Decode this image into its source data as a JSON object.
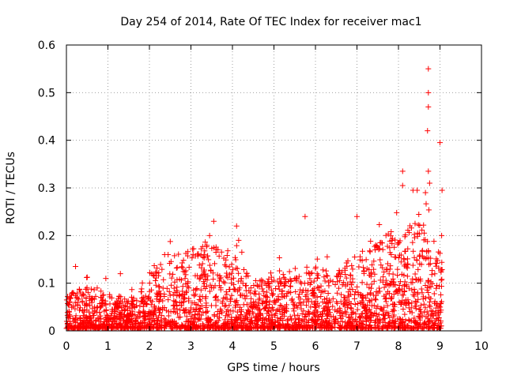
{
  "chart_data": {
    "type": "scatter",
    "title": "Day 254 of 2014, Rate Of TEC Index for receiver mac1",
    "xlabel": "GPS time / hours",
    "ylabel": "ROTI / TECUs",
    "xlim": [
      0,
      10
    ],
    "ylim": [
      0,
      0.6
    ],
    "xticks": [
      "0",
      "1",
      "2",
      "3",
      "4",
      "5",
      "6",
      "7",
      "8",
      "9",
      "10"
    ],
    "yticks": [
      "0",
      "0.1",
      "0.2",
      "0.3",
      "0.4",
      "0.5",
      "0.6"
    ],
    "grid": true,
    "marker": "+",
    "color": "#ff0000",
    "highlighted_points": [
      {
        "x": 8.72,
        "y": 0.55
      },
      {
        "x": 8.72,
        "y": 0.5
      },
      {
        "x": 8.72,
        "y": 0.47
      },
      {
        "x": 8.7,
        "y": 0.42
      },
      {
        "x": 9.0,
        "y": 0.395
      },
      {
        "x": 8.72,
        "y": 0.335
      },
      {
        "x": 8.1,
        "y": 0.335
      },
      {
        "x": 8.75,
        "y": 0.31
      },
      {
        "x": 8.1,
        "y": 0.305
      },
      {
        "x": 8.35,
        "y": 0.295
      },
      {
        "x": 8.45,
        "y": 0.295
      },
      {
        "x": 9.05,
        "y": 0.295
      },
      {
        "x": 8.65,
        "y": 0.29
      },
      {
        "x": 5.75,
        "y": 0.24
      },
      {
        "x": 7.0,
        "y": 0.24
      },
      {
        "x": 3.55,
        "y": 0.23
      },
      {
        "x": 4.1,
        "y": 0.22
      },
      {
        "x": 4.15,
        "y": 0.19
      },
      {
        "x": 2.45,
        "y": 0.16
      },
      {
        "x": 3.45,
        "y": 0.2
      },
      {
        "x": 0.22,
        "y": 0.135
      },
      {
        "x": 1.3,
        "y": 0.12
      },
      {
        "x": 0.95,
        "y": 0.11
      }
    ],
    "density_envelope": [
      {
        "x": 0.0,
        "y": 0.07
      },
      {
        "x": 0.5,
        "y": 0.09
      },
      {
        "x": 1.0,
        "y": 0.08
      },
      {
        "x": 1.5,
        "y": 0.06
      },
      {
        "x": 2.0,
        "y": 0.12
      },
      {
        "x": 2.5,
        "y": 0.15
      },
      {
        "x": 3.0,
        "y": 0.17
      },
      {
        "x": 3.5,
        "y": 0.18
      },
      {
        "x": 4.0,
        "y": 0.16
      },
      {
        "x": 4.5,
        "y": 0.1
      },
      {
        "x": 5.0,
        "y": 0.12
      },
      {
        "x": 5.5,
        "y": 0.13
      },
      {
        "x": 6.0,
        "y": 0.13
      },
      {
        "x": 6.5,
        "y": 0.12
      },
      {
        "x": 7.0,
        "y": 0.16
      },
      {
        "x": 7.5,
        "y": 0.18
      },
      {
        "x": 8.0,
        "y": 0.22
      },
      {
        "x": 8.5,
        "y": 0.24
      },
      {
        "x": 9.0,
        "y": 0.16
      }
    ],
    "x_coverage": [
      0.0,
      9.05
    ]
  }
}
